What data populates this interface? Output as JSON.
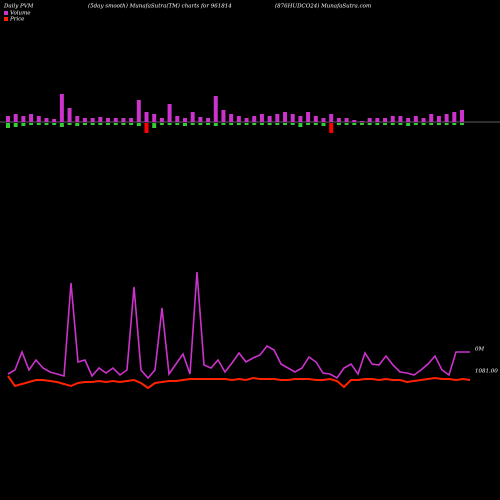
{
  "chart_data": {
    "type": "pvm",
    "title": "Daily PVM",
    "subtitle": "(5day smooth) MunafaSutra(TM) charts for 961814",
    "source": "(876HUDCO24) MunafaSutra.com",
    "series": [
      {
        "name": "Volume",
        "color": "#cc33cc",
        "values": [
          6,
          10,
          28,
          10,
          20,
          12,
          8,
          6,
          4,
          97,
          18,
          20,
          4,
          12,
          7,
          12,
          5,
          10,
          93,
          10,
          2,
          10,
          72,
          6,
          16,
          26,
          6,
          108,
          15,
          12,
          20,
          8,
          17,
          27,
          18,
          22,
          25,
          34,
          30,
          16,
          12,
          8,
          12,
          23,
          18,
          7,
          6,
          2,
          12,
          16,
          6,
          27,
          16,
          15,
          24,
          15,
          8,
          7,
          5,
          10,
          16,
          24,
          10,
          5,
          28,
          28,
          28
        ],
        "end_label": "0M"
      },
      {
        "name": "Price",
        "color": "#ff2200",
        "values": [
          24,
          14,
          16,
          18,
          20,
          20,
          19,
          18,
          16,
          14,
          17,
          18,
          18,
          19,
          18,
          19,
          18,
          19,
          20,
          17,
          12,
          17,
          18,
          19,
          19,
          20,
          21,
          21,
          21,
          21,
          21,
          21,
          20,
          21,
          20,
          22,
          21,
          21,
          21,
          20,
          20,
          21,
          21,
          21,
          20,
          20,
          21,
          19,
          13,
          20,
          20,
          21,
          21,
          20,
          21,
          20,
          20,
          18,
          19,
          20,
          21,
          22,
          21,
          21,
          20,
          21,
          20
        ],
        "end_label": "1081.00"
      }
    ],
    "ylim": [
      0,
      110
    ],
    "volume_bars": {
      "color": "#cc33cc",
      "values": [
        6,
        8,
        6,
        8,
        6,
        4,
        3,
        28,
        14,
        6,
        4,
        4,
        5,
        4,
        4,
        4,
        4,
        22,
        10,
        8,
        4,
        18,
        6,
        4,
        10,
        5,
        4,
        26,
        12,
        8,
        6,
        4,
        6,
        8,
        6,
        8,
        10,
        8,
        6,
        10,
        6,
        4,
        8,
        4,
        4,
        2,
        1,
        4,
        4,
        4,
        6,
        6,
        4,
        6,
        4,
        8,
        6,
        8,
        10,
        12
      ]
    },
    "price_bars": {
      "up_color": "#33cc33",
      "down_color": "#ff0000",
      "values": [
        5,
        4,
        3,
        2,
        2,
        2,
        2,
        4,
        2,
        3,
        2,
        2,
        2,
        2,
        2,
        2,
        2,
        3,
        -10,
        5,
        2,
        2,
        2,
        3,
        2,
        2,
        2,
        3,
        2,
        2,
        2,
        2,
        2,
        2,
        2,
        2,
        2,
        2,
        4,
        2,
        2,
        3,
        -10,
        2,
        2,
        2,
        2,
        2,
        2,
        2,
        2,
        2,
        3,
        2,
        2,
        2,
        2,
        2,
        2,
        2
      ]
    },
    "bar_ylim": [
      0,
      30
    ]
  }
}
